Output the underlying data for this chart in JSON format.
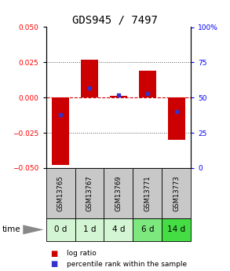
{
  "title": "GDS945 / 7497",
  "samples": [
    "GSM13765",
    "GSM13767",
    "GSM13769",
    "GSM13771",
    "GSM13773"
  ],
  "time_labels": [
    "0 d",
    "1 d",
    "4 d",
    "6 d",
    "14 d"
  ],
  "log_ratios": [
    -0.048,
    0.027,
    0.001,
    0.019,
    -0.03
  ],
  "percentile_ranks": [
    0.38,
    0.57,
    0.52,
    0.53,
    0.4
  ],
  "ylim_left": [
    -0.05,
    0.05
  ],
  "ylim_right": [
    0,
    100
  ],
  "yticks_left": [
    -0.05,
    -0.025,
    0,
    0.025,
    0.05
  ],
  "yticks_right": [
    0,
    25,
    50,
    75,
    100
  ],
  "bar_color": "#cc0000",
  "dot_color": "#3333cc",
  "zero_line_color": "#cc0000",
  "dot_line_color": "#555555",
  "sample_bg_color": "#c8c8c8",
  "time_bg_colors": [
    "#d4f5d4",
    "#d4f5d4",
    "#d4f5d4",
    "#7de87d",
    "#44dd44"
  ],
  "title_fontsize": 10,
  "tick_fontsize": 6.5,
  "sample_label_fontsize": 6,
  "time_label_fontsize": 7.5,
  "legend_fontsize": 6.5
}
